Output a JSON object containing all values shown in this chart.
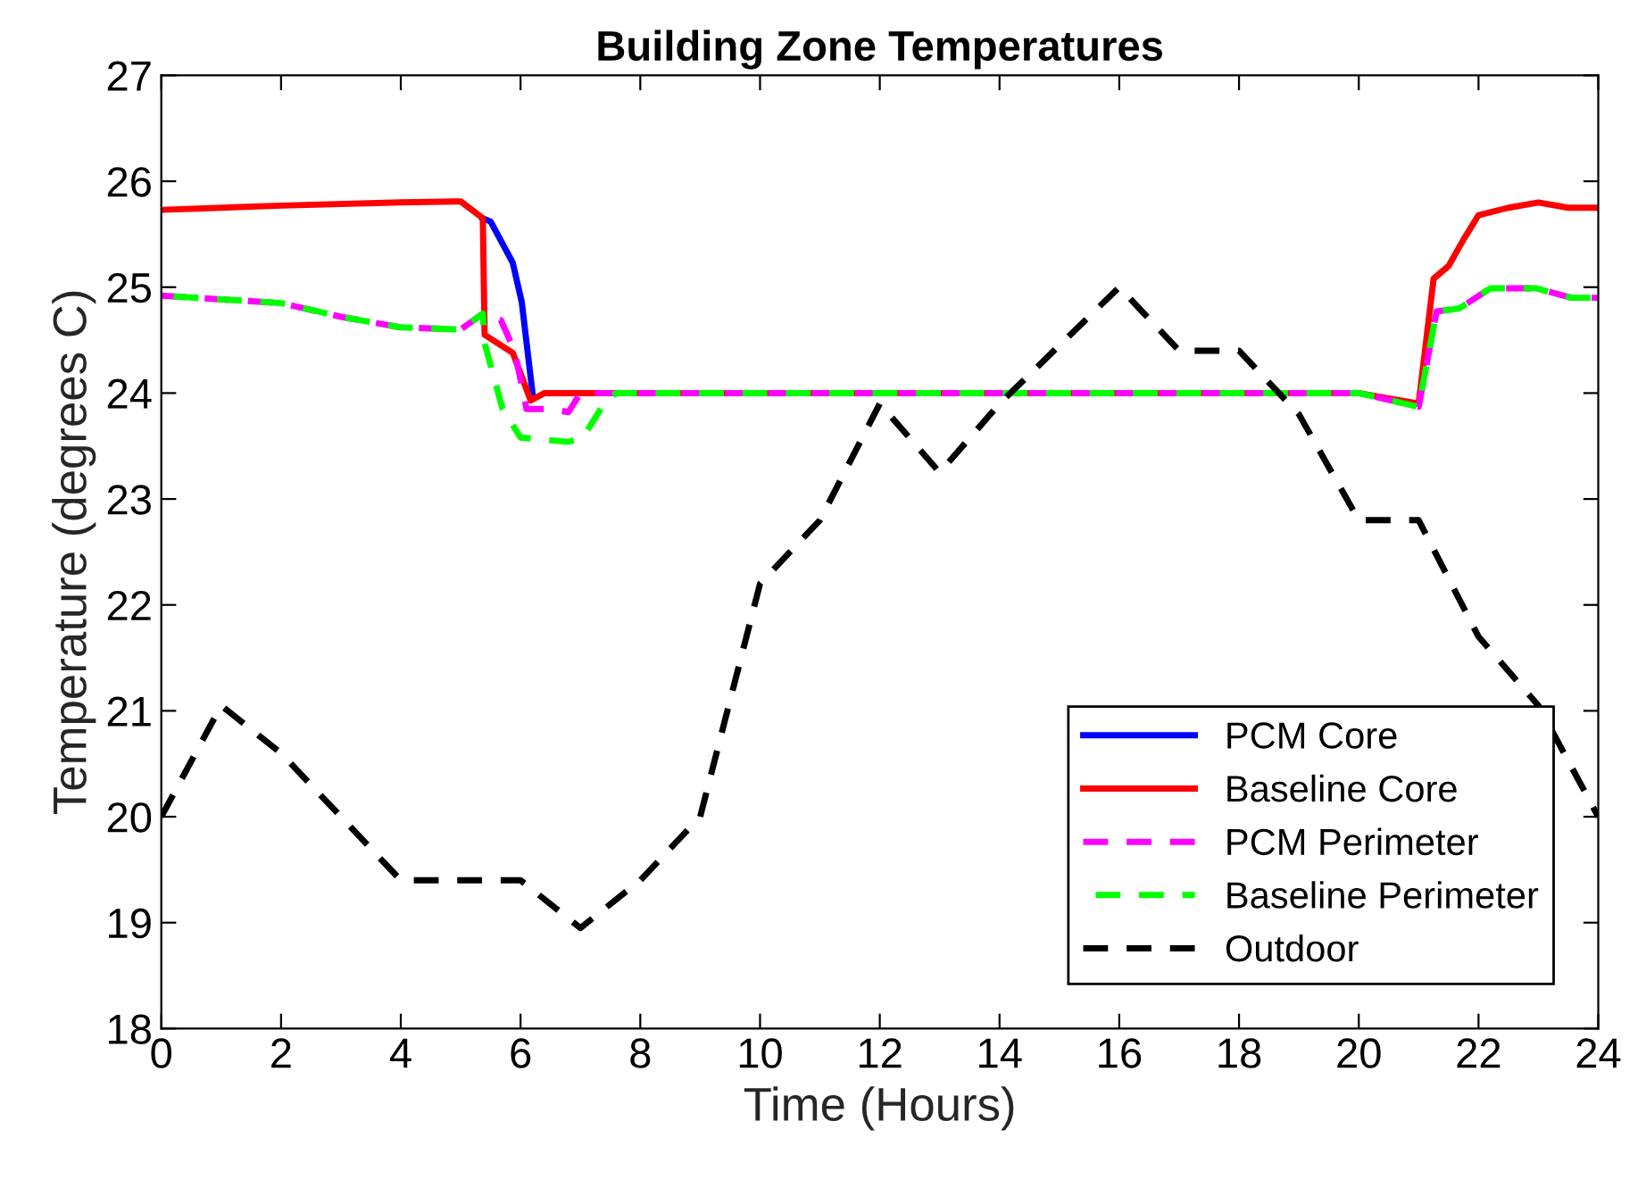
{
  "chart_data": {
    "type": "line",
    "title": "Building Zone Temperatures",
    "xlabel": "Time (Hours)",
    "ylabel": "Temperature (degrees C)",
    "xlim": [
      0,
      24
    ],
    "ylim": [
      18,
      27
    ],
    "xticks": [
      0,
      2,
      4,
      6,
      8,
      10,
      12,
      14,
      16,
      18,
      20,
      22,
      24
    ],
    "yticks": [
      18,
      19,
      20,
      21,
      22,
      23,
      24,
      25,
      26,
      27
    ],
    "grid": false,
    "legend": "bottom right",
    "series": [
      {
        "name": "PCM Core",
        "color": "#0000ff",
        "line_style": "solid",
        "x": [
          5.37,
          5.5,
          5.87,
          6.02,
          6.2
        ],
        "values": [
          25.65,
          25.62,
          25.23,
          24.86,
          24.0
        ]
      },
      {
        "name": "Baseline Core",
        "color": "#ff0000",
        "line_style": "solid",
        "x": [
          0,
          2,
          4,
          5,
          5.37,
          5.4,
          5.87,
          6.17,
          6.4,
          8,
          12,
          16,
          20,
          20.5,
          21,
          21.25,
          21.5,
          21.75,
          22,
          22.5,
          23,
          23.5,
          24
        ],
        "values": [
          25.73,
          25.77,
          25.8,
          25.81,
          25.65,
          24.55,
          24.38,
          23.93,
          24.0,
          24.0,
          24.0,
          24.0,
          24.0,
          23.95,
          23.9,
          25.08,
          25.2,
          25.45,
          25.68,
          25.75,
          25.8,
          25.75,
          25.75
        ]
      },
      {
        "name": "PCM Perimeter",
        "color": "#ff00ff",
        "line_style": "dashed",
        "x": [
          0,
          2,
          3,
          4,
          5,
          5.37,
          5.67,
          5.9,
          6.1,
          6.5,
          6.8,
          7.0,
          7.3,
          8,
          12,
          16,
          20,
          21,
          21.3,
          21.68,
          22.2,
          22.95,
          23.55,
          24
        ],
        "values": [
          24.92,
          24.85,
          24.72,
          24.62,
          24.6,
          24.75,
          24.69,
          24.4,
          23.85,
          23.85,
          23.82,
          24.0,
          24.0,
          24.0,
          24.0,
          24.0,
          24.0,
          23.87,
          24.77,
          24.8,
          24.99,
          24.99,
          24.9,
          24.9
        ]
      },
      {
        "name": "Baseline Perimeter",
        "color": "#00ff00",
        "line_style": "dashed",
        "x": [
          0,
          2,
          3,
          4,
          5,
          5.37,
          5.4,
          5.7,
          6.0,
          6.8,
          7.04,
          7.44,
          7.6,
          8,
          12,
          16,
          20,
          21,
          21.3,
          21.68,
          22.2,
          22.95,
          23.55,
          24
        ],
        "values": [
          24.92,
          24.85,
          24.72,
          24.62,
          24.6,
          24.75,
          24.47,
          23.85,
          23.58,
          23.54,
          23.58,
          23.94,
          24.0,
          24.0,
          24.0,
          24.0,
          24.0,
          23.87,
          24.77,
          24.8,
          24.99,
          24.99,
          24.9,
          24.9
        ]
      },
      {
        "name": "Outdoor",
        "color": "#000000",
        "line_style": "dashed",
        "x": [
          0,
          1,
          2,
          3,
          4,
          5,
          6,
          7,
          8,
          9,
          10,
          11,
          12,
          13,
          14,
          15,
          16,
          17,
          18,
          19,
          20,
          21,
          22,
          23,
          24
        ],
        "values": [
          20.0,
          21.05,
          20.6,
          20.0,
          19.4,
          19.4,
          19.4,
          18.95,
          19.4,
          20.0,
          22.2,
          22.8,
          23.9,
          23.25,
          23.9,
          24.45,
          25.0,
          24.4,
          24.4,
          23.8,
          22.8,
          22.8,
          21.7,
          21.05,
          20.0
        ]
      }
    ]
  }
}
